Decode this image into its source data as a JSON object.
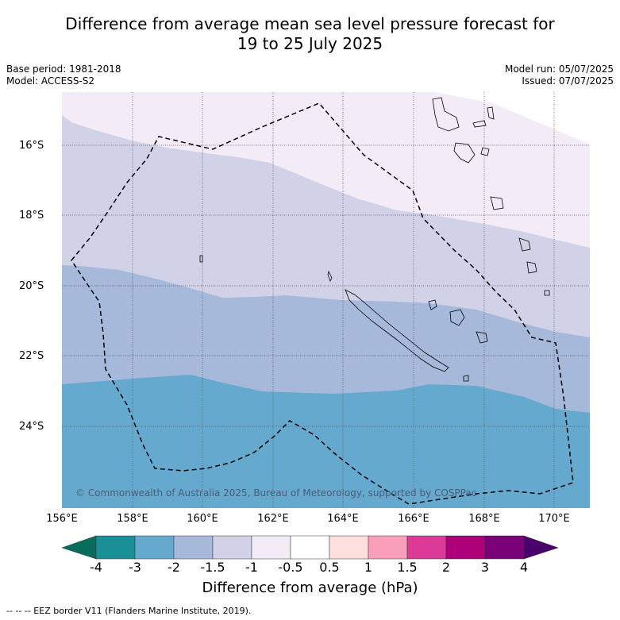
{
  "title_line1": "Difference from average mean sea level pressure forecast for",
  "title_line2": "19 to 25 July 2025",
  "base_period": "Base period: 1981-2018",
  "model": "Model: ACCESS-S2",
  "model_run": "Model run: 05/07/2025",
  "issued": "Issued: 07/07/2025",
  "copyright": "© Commonwealth of Australia 2025, Bureau of Meteorology, supported by COSPPac",
  "colorbar_label": "Difference from average (hPa)",
  "eez_note": "--  --  -- EEZ border V11 (Flanders Marine Institute, 2019).",
  "lat_labels": [
    "16°S",
    "18°S",
    "20°S",
    "22°S",
    "24°S"
  ],
  "lon_labels": [
    "156°E",
    "158°E",
    "160°E",
    "162°E",
    "164°E",
    "166°E",
    "168°E",
    "170°E"
  ],
  "colorbar": {
    "ticks": [
      "-4",
      "-3",
      "-2",
      "-1.5",
      "-1",
      "-0.5",
      "0.5",
      "1",
      "1.5",
      "2",
      "3",
      "4"
    ],
    "colors": [
      "#1a8f96",
      "#65a9cf",
      "#a6b9da",
      "#d1d2e7",
      "#f3ecf6",
      "#ffffff",
      "#fde0dd",
      "#f99fb9",
      "#db3b97",
      "#ae0179",
      "#7a0177"
    ],
    "under_color": "#086c5c",
    "over_color": "#49006a"
  },
  "map_data": {
    "region": "New Caledonia and Vanuatu",
    "lon_range": [
      156,
      171
    ],
    "lat_range": [
      -14.8,
      -26.6
    ],
    "contour_levels_hPa": [
      "-3 to -2",
      "-2 to -1.5",
      "-1.5 to -1",
      "-1 to -0.5"
    ]
  }
}
